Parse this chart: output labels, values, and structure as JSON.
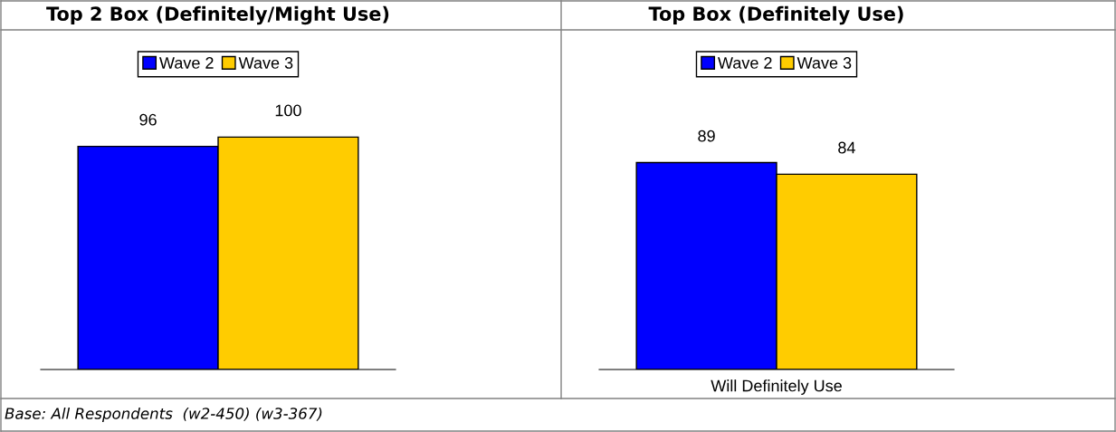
{
  "chart_data": [
    {
      "type": "bar",
      "title": "Top 2 Box (Definitely/Might Use)",
      "categories": [
        null
      ],
      "series": [
        {
          "name": "Wave 2",
          "color": "#0000ff",
          "values": [
            96
          ]
        },
        {
          "name": "Wave 3",
          "color": "#ffcc00",
          "values": [
            100
          ]
        }
      ],
      "data_labels": true,
      "legend": "top",
      "grid": false,
      "annotations": [
        "Base: All Respondents  (w2-450) (w3-367)"
      ]
    },
    {
      "type": "bar",
      "title": "Top Box (Definitely Use)",
      "categories": [
        null
      ],
      "xlabel": "Will Definitely Use",
      "series": [
        {
          "name": "Wave 2",
          "color": "#0000ff",
          "values": [
            89
          ]
        },
        {
          "name": "Wave 3",
          "color": "#ffcc00",
          "values": [
            84
          ]
        }
      ],
      "data_labels": true,
      "legend": "top",
      "grid": false
    }
  ]
}
